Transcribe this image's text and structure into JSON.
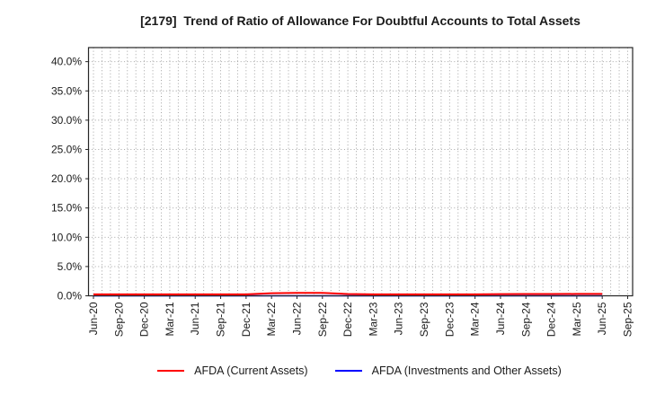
{
  "title": "[2179]  Trend of Ratio of Allowance For Doubtful Accounts to Total Assets",
  "chart_data": {
    "type": "line",
    "title": "[2179]  Trend of Ratio of Allowance For Doubtful Accounts to Total Assets",
    "x_tick_labels": [
      "Jun-20",
      "Sep-20",
      "Dec-20",
      "Mar-21",
      "Jun-21",
      "Sep-21",
      "Dec-21",
      "Mar-22",
      "Jun-22",
      "Sep-22",
      "Dec-22",
      "Mar-23",
      "Jun-23",
      "Sep-23",
      "Dec-23",
      "Mar-24",
      "Jun-24",
      "Sep-24",
      "Dec-24",
      "Mar-25",
      "Jun-25",
      "Sep-25"
    ],
    "y_tick_labels": [
      "0.0%",
      "5.0%",
      "10.0%",
      "15.0%",
      "20.0%",
      "25.0%",
      "30.0%",
      "35.0%",
      "40.0%"
    ],
    "ylim": [
      0,
      42.4
    ],
    "grid": "dotted; vertical gridline every month, horizontal every 5%",
    "legend_position": "bottom-center",
    "background": "#ffffff",
    "grid_color": "#999999",
    "axis_color": "#262626",
    "text_color": "#1a1a1a",
    "series": [
      {
        "name": "AFDA (Current Assets)",
        "color": "#ff0000",
        "x": [
          "Jun-20",
          "Sep-20",
          "Dec-20",
          "Mar-21",
          "Jun-21",
          "Sep-21",
          "Dec-21",
          "Mar-22",
          "Jun-22",
          "Sep-22",
          "Dec-22",
          "Mar-23",
          "Jun-23",
          "Sep-23",
          "Dec-23",
          "Mar-24",
          "Jun-24",
          "Sep-24",
          "Dec-24",
          "Mar-25",
          "Jun-25"
        ],
        "values": [
          0.25,
          0.25,
          0.25,
          0.25,
          0.25,
          0.25,
          0.25,
          0.45,
          0.5,
          0.5,
          0.3,
          0.25,
          0.25,
          0.25,
          0.25,
          0.25,
          0.28,
          0.3,
          0.3,
          0.32,
          0.32
        ]
      },
      {
        "name": "AFDA (Investments and Other Assets)",
        "color": "#0000ff",
        "x": [
          "Jun-20",
          "Sep-20",
          "Dec-20",
          "Mar-21",
          "Jun-21",
          "Sep-21",
          "Dec-21",
          "Mar-22",
          "Jun-22",
          "Sep-22",
          "Dec-22",
          "Mar-23",
          "Jun-23",
          "Sep-23",
          "Dec-23",
          "Mar-24",
          "Jun-24",
          "Sep-24",
          "Dec-24",
          "Mar-25",
          "Jun-25"
        ],
        "values": [
          0,
          0,
          0,
          0,
          0,
          0,
          0,
          0,
          0,
          0,
          0,
          0,
          0,
          0,
          0,
          0,
          0,
          0,
          0,
          0,
          0
        ]
      }
    ]
  }
}
